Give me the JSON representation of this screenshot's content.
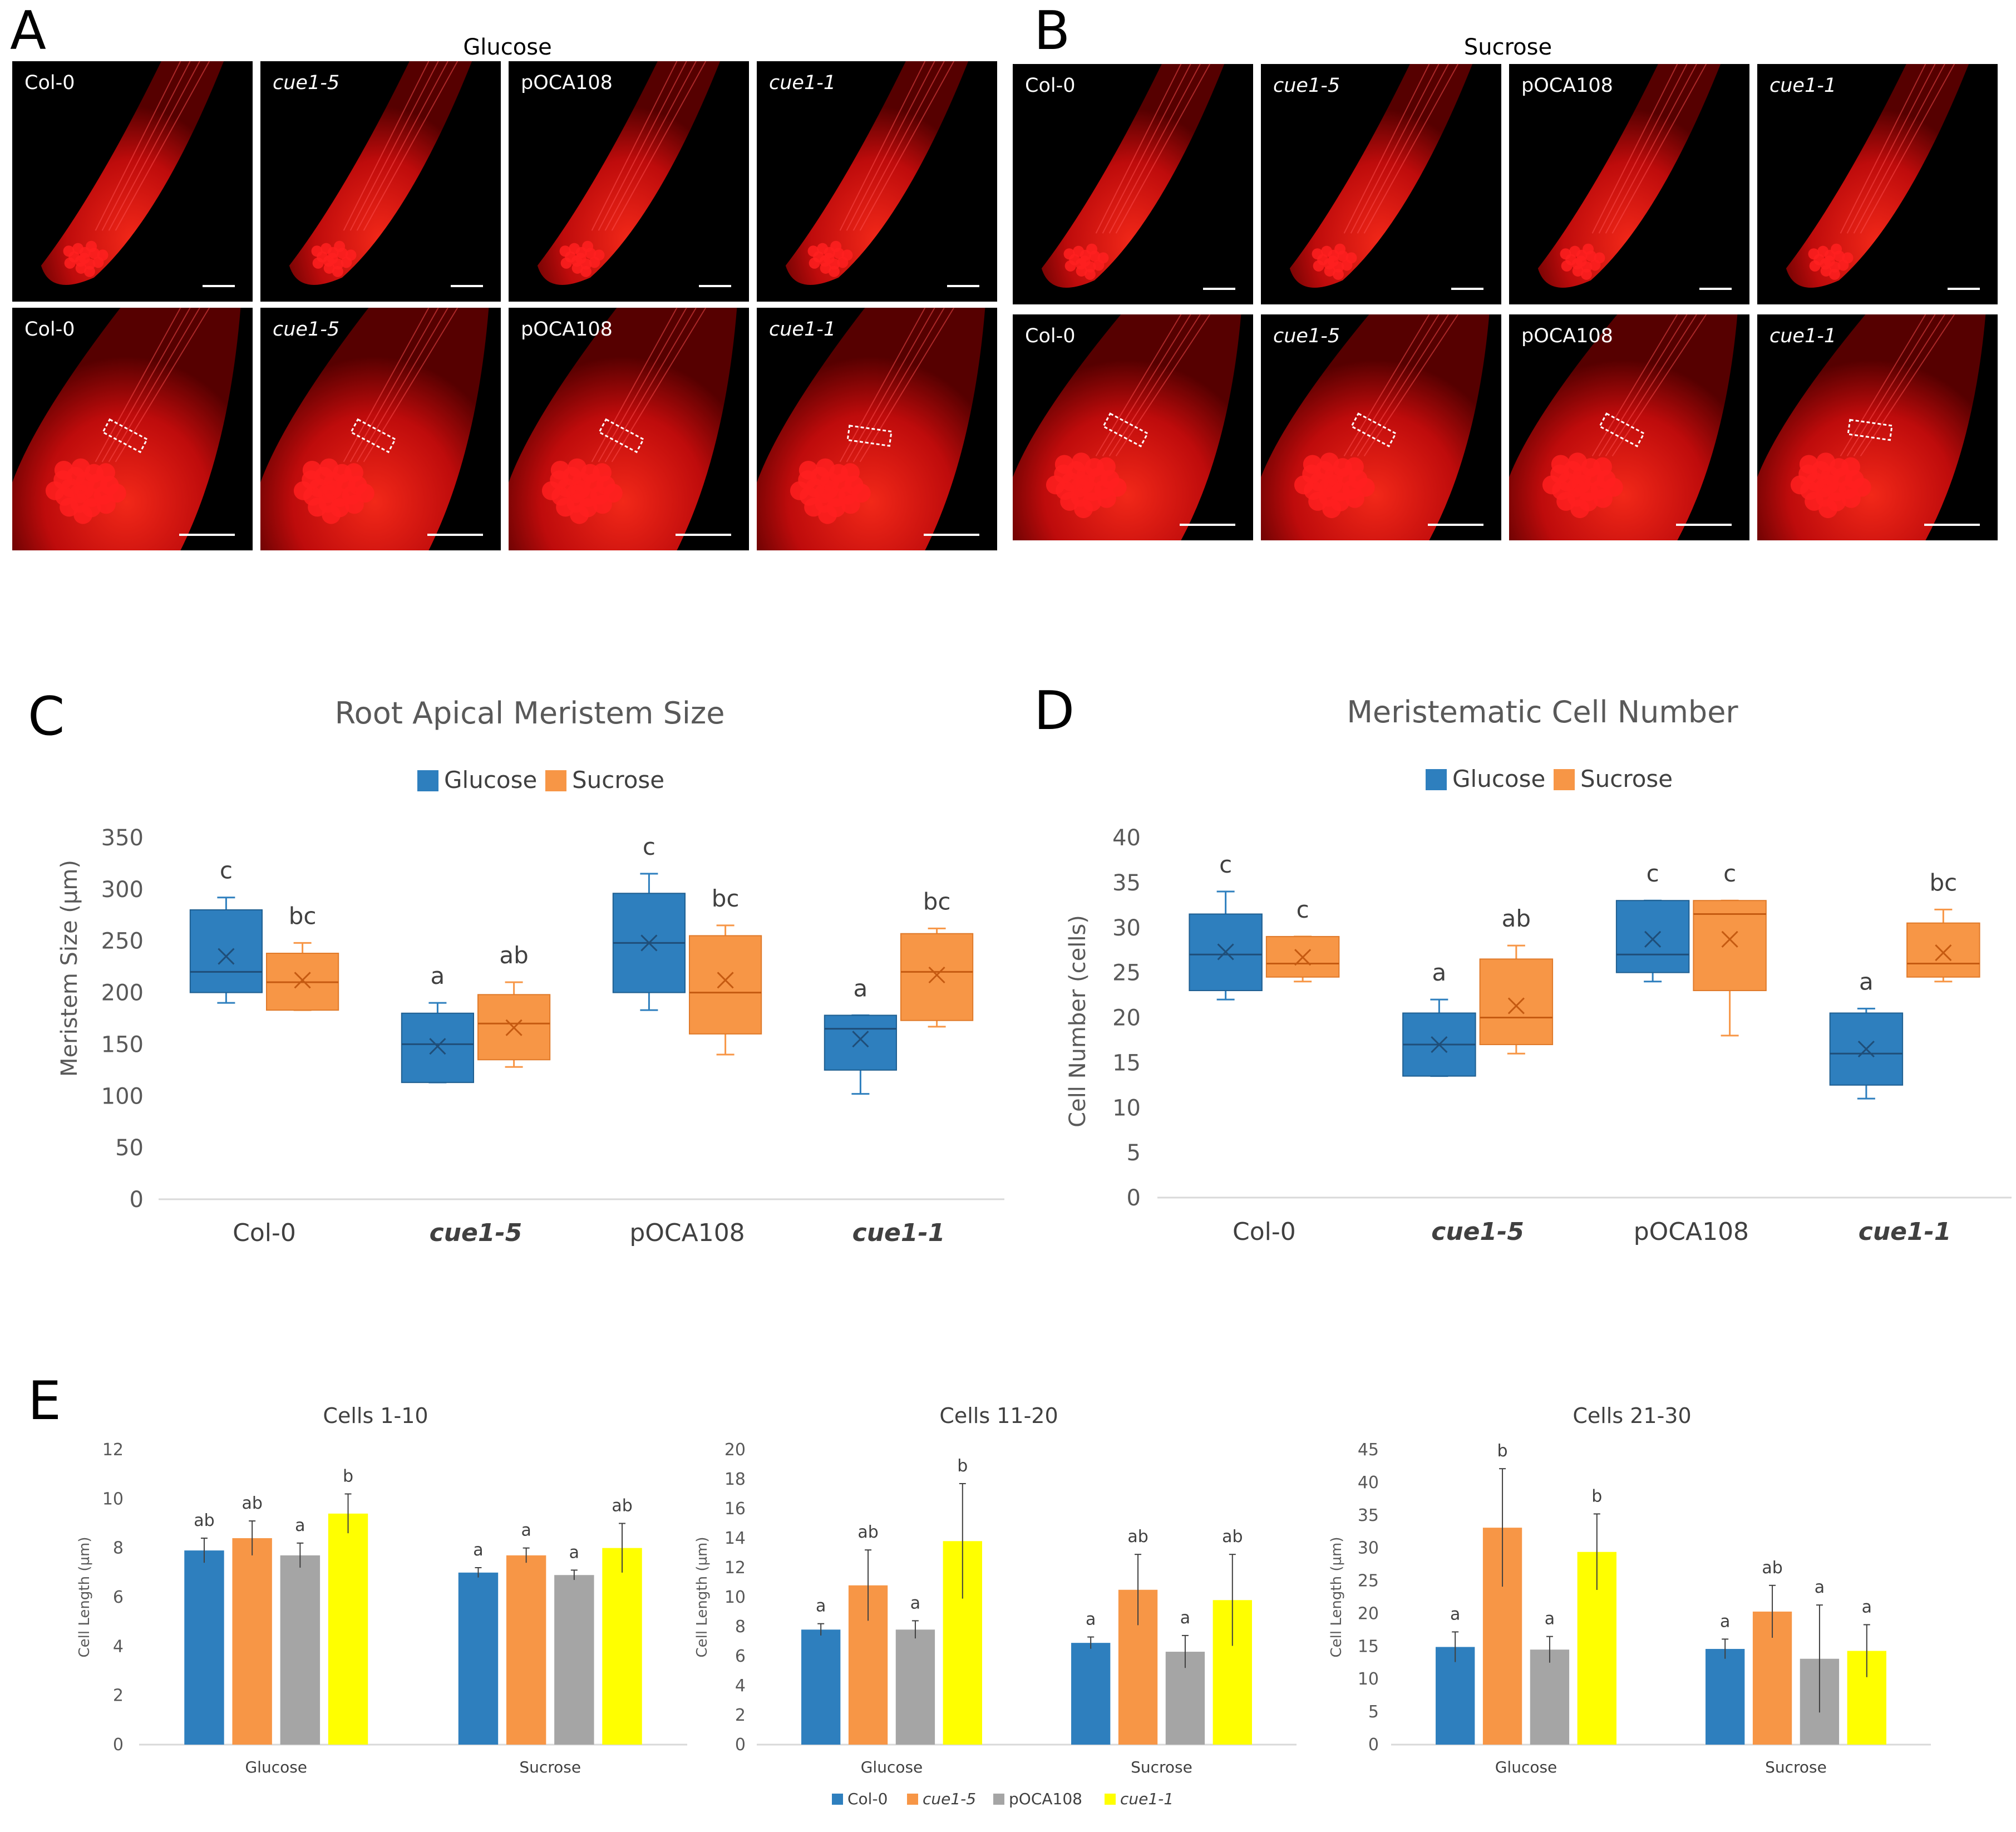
{
  "panels": {
    "A": {
      "letter": "A",
      "title": "Glucose"
    },
    "B": {
      "letter": "B",
      "title": "Sucrose"
    },
    "C": {
      "letter": "C"
    },
    "D": {
      "letter": "D"
    },
    "E": {
      "letter": "E"
    }
  },
  "micrographs": {
    "rows": [
      {
        "panel": "A",
        "labels": [
          "Col-0",
          "cue1-5",
          "pOCA108",
          "cue1-1"
        ],
        "italic": [
          false,
          true,
          false,
          true
        ]
      },
      {
        "panel": "A",
        "labels": [
          "Col-0",
          "cue1-5",
          "pOCA108",
          "cue1-1"
        ],
        "italic": [
          false,
          true,
          false,
          true
        ]
      },
      {
        "panel": "B",
        "labels": [
          "Col-0",
          "cue1-5",
          "pOCA108",
          "cue1-1"
        ],
        "italic": [
          false,
          true,
          false,
          true
        ]
      },
      {
        "panel": "B",
        "labels": [
          "Col-0",
          "cue1-5",
          "pOCA108",
          "cue1-1"
        ],
        "italic": [
          false,
          true,
          false,
          true
        ]
      }
    ],
    "colors": {
      "background": "#000000",
      "tissue": "#e81010",
      "cells": "#ff2020"
    }
  },
  "chart_data": [
    {
      "id": "C",
      "type": "boxplot",
      "title": "Root Apical Meristem Size",
      "ylabel": "Meristem Size (µm)",
      "ylim": [
        0,
        350
      ],
      "yticks": [
        0,
        50,
        100,
        150,
        200,
        250,
        300,
        350
      ],
      "categories": [
        "Col-0",
        "cue1-5",
        "pOCA108",
        "cue1-1"
      ],
      "category_italic": [
        false,
        true,
        false,
        true
      ],
      "series": [
        {
          "name": "Glucose",
          "color": "#2e7fbe",
          "boxes": [
            {
              "min": 190,
              "q1": 200,
              "median": 220,
              "q3": 280,
              "max": 292,
              "mean": 235,
              "sig": "c"
            },
            {
              "min": 113,
              "q1": 113,
              "median": 150,
              "q3": 180,
              "max": 190,
              "mean": 148,
              "sig": "a"
            },
            {
              "min": 183,
              "q1": 200,
              "median": 248,
              "q3": 296,
              "max": 315,
              "mean": 248,
              "sig": "c"
            },
            {
              "min": 102,
              "q1": 125,
              "median": 165,
              "q3": 178,
              "max": 178,
              "mean": 155,
              "sig": "a"
            }
          ]
        },
        {
          "name": "Sucrose",
          "color": "#f79646",
          "boxes": [
            {
              "min": 183,
              "q1": 183,
              "median": 210,
              "q3": 238,
              "max": 248,
              "mean": 212,
              "sig": "bc"
            },
            {
              "min": 128,
              "q1": 135,
              "median": 170,
              "q3": 198,
              "max": 210,
              "mean": 166,
              "sig": "ab"
            },
            {
              "min": 140,
              "q1": 160,
              "median": 200,
              "q3": 255,
              "max": 265,
              "mean": 212,
              "sig": "bc"
            },
            {
              "min": 167,
              "q1": 173,
              "median": 220,
              "q3": 257,
              "max": 262,
              "mean": 217,
              "sig": "bc"
            }
          ]
        }
      ]
    },
    {
      "id": "D",
      "type": "boxplot",
      "title": "Meristematic Cell Number",
      "ylabel": "Cell Number (cells)",
      "ylim": [
        0,
        40
      ],
      "yticks": [
        0,
        5,
        10,
        15,
        20,
        25,
        30,
        35,
        40
      ],
      "categories": [
        "Col-0",
        "cue1-5",
        "pOCA108",
        "cue1-1"
      ],
      "category_italic": [
        false,
        true,
        false,
        true
      ],
      "series": [
        {
          "name": "Glucose",
          "color": "#2e7fbe",
          "boxes": [
            {
              "min": 22,
              "q1": 23,
              "median": 27,
              "q3": 31.5,
              "max": 34,
              "mean": 27.3,
              "sig": "c"
            },
            {
              "min": 13.5,
              "q1": 13.5,
              "median": 17,
              "q3": 20.5,
              "max": 22,
              "mean": 17,
              "sig": "a"
            },
            {
              "min": 24,
              "q1": 25,
              "median": 27,
              "q3": 33,
              "max": 33,
              "mean": 28.7,
              "sig": "c"
            },
            {
              "min": 11,
              "q1": 12.5,
              "median": 16,
              "q3": 20.5,
              "max": 21,
              "mean": 16.5,
              "sig": "a"
            }
          ]
        },
        {
          "name": "Sucrose",
          "color": "#f79646",
          "boxes": [
            {
              "min": 24,
              "q1": 24.5,
              "median": 26,
              "q3": 29,
              "max": 29,
              "mean": 26.7,
              "sig": "c"
            },
            {
              "min": 16,
              "q1": 17,
              "median": 20,
              "q3": 26.5,
              "max": 28,
              "mean": 21.3,
              "sig": "ab"
            },
            {
              "min": 18,
              "q1": 23,
              "median": 31.5,
              "q3": 33,
              "max": 33,
              "mean": 28.7,
              "sig": "c"
            },
            {
              "min": 24,
              "q1": 24.5,
              "median": 26,
              "q3": 30.5,
              "max": 32,
              "mean": 27.2,
              "sig": "bc"
            }
          ]
        }
      ]
    },
    {
      "id": "E1",
      "type": "bar",
      "title": "Cells 1-10",
      "ylabel": "Cell Length (µm)",
      "ylim": [
        0,
        12
      ],
      "yticks": [
        0,
        2,
        4,
        6,
        8,
        10,
        12
      ],
      "groups": [
        "Glucose",
        "Sucrose"
      ],
      "series": [
        {
          "name": "Col-0",
          "color": "#2e7fbe",
          "values": [
            7.9,
            7.0
          ],
          "errors": [
            0.5,
            0.2
          ],
          "sig": [
            "ab",
            "a"
          ]
        },
        {
          "name": "cue1-5",
          "color": "#f79646",
          "values": [
            8.4,
            7.7
          ],
          "errors": [
            0.7,
            0.3
          ],
          "sig": [
            "ab",
            "a"
          ]
        },
        {
          "name": "pOCA108",
          "color": "#a5a5a5",
          "values": [
            7.7,
            6.9
          ],
          "errors": [
            0.5,
            0.2
          ],
          "sig": [
            "a",
            "a"
          ]
        },
        {
          "name": "cue1-1",
          "color": "#ffff00",
          "values": [
            9.4,
            8.0
          ],
          "errors": [
            0.8,
            1.0
          ],
          "sig": [
            "b",
            "ab"
          ]
        }
      ]
    },
    {
      "id": "E2",
      "type": "bar",
      "title": "Cells 11-20",
      "ylabel": "Cell Length (µm)",
      "ylim": [
        0,
        20
      ],
      "yticks": [
        0,
        2,
        4,
        6,
        8,
        10,
        12,
        14,
        16,
        18,
        20
      ],
      "groups": [
        "Glucose",
        "Sucrose"
      ],
      "series": [
        {
          "name": "Col-0",
          "color": "#2e7fbe",
          "values": [
            7.8,
            6.9
          ],
          "errors": [
            0.4,
            0.4
          ],
          "sig": [
            "a",
            "a"
          ]
        },
        {
          "name": "cue1-5",
          "color": "#f79646",
          "values": [
            10.8,
            10.5
          ],
          "errors": [
            2.4,
            2.4
          ],
          "sig": [
            "ab",
            "ab"
          ]
        },
        {
          "name": "pOCA108",
          "color": "#a5a5a5",
          "values": [
            7.8,
            6.3
          ],
          "errors": [
            0.6,
            1.1
          ],
          "sig": [
            "a",
            "a"
          ]
        },
        {
          "name": "cue1-1",
          "color": "#ffff00",
          "values": [
            13.8,
            9.8
          ],
          "errors": [
            3.9,
            3.1
          ],
          "sig": [
            "b",
            "ab"
          ]
        }
      ]
    },
    {
      "id": "E3",
      "type": "bar",
      "title": "Cells 21-30",
      "ylabel": "Cell Length (µm)",
      "ylim": [
        0,
        45
      ],
      "yticks": [
        0,
        5,
        10,
        15,
        20,
        25,
        30,
        35,
        40,
        45
      ],
      "groups": [
        "Glucose",
        "Sucrose"
      ],
      "series": [
        {
          "name": "Col-0",
          "color": "#2e7fbe",
          "values": [
            14.9,
            14.6
          ],
          "errors": [
            2.3,
            1.5
          ],
          "sig": [
            "a",
            "a"
          ]
        },
        {
          "name": "cue1-5",
          "color": "#f79646",
          "values": [
            33.1,
            20.3
          ],
          "errors": [
            9.0,
            4.0
          ],
          "sig": [
            "b",
            "ab"
          ]
        },
        {
          "name": "pOCA108",
          "color": "#a5a5a5",
          "values": [
            14.5,
            13.1
          ],
          "errors": [
            2.0,
            8.2
          ],
          "sig": [
            "a",
            "a"
          ]
        },
        {
          "name": "cue1-1",
          "color": "#ffff00",
          "values": [
            29.4,
            14.3
          ],
          "errors": [
            5.8,
            4.0
          ],
          "sig": [
            "b",
            "a"
          ]
        }
      ]
    }
  ],
  "legends": {
    "CD": [
      {
        "name": "Glucose",
        "color": "#2e7fbe"
      },
      {
        "name": "Sucrose",
        "color": "#f79646"
      }
    ],
    "E": [
      {
        "name": "Col-0",
        "color": "#2e7fbe",
        "italic": false
      },
      {
        "name": "cue1-5",
        "color": "#f79646",
        "italic": true
      },
      {
        "name": "pOCA108",
        "color": "#a5a5a5",
        "italic": false
      },
      {
        "name": "cue1-1",
        "color": "#ffff00",
        "italic": true
      }
    ]
  }
}
